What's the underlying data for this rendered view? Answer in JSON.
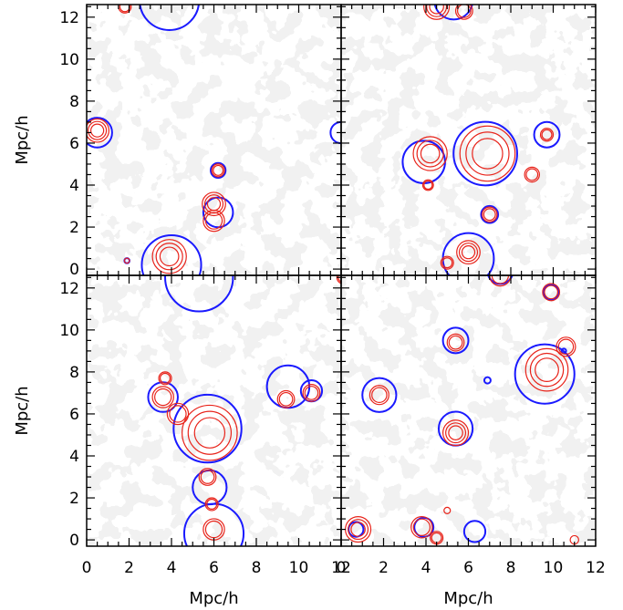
{
  "chart_data": {
    "type": "contour-panels",
    "layout": "2x2 shared axes",
    "xlabel": "Mpc/h",
    "ylabel": "Mpc/h",
    "xlim": [
      0,
      12
    ],
    "ylim": [
      -0.3,
      12.6
    ],
    "x_ticks": [
      0,
      2,
      4,
      6,
      8,
      10,
      12
    ],
    "y_ticks": [
      0,
      2,
      4,
      6,
      8,
      10,
      12
    ],
    "x_tick_labels": [
      "0",
      "2",
      "4",
      "6",
      "8",
      "10",
      "12"
    ],
    "y_tick_labels": [
      "0",
      "2",
      "4",
      "6",
      "8",
      "10",
      "12"
    ],
    "colors": {
      "blue_contour": "#1a1aff",
      "red_contour": "#e8231a",
      "background_field": "#dcdcdc"
    },
    "panels": [
      {
        "position": "top-left",
        "blue_regions": [
          {
            "x": 3.9,
            "y": 12.8,
            "r": 1.4
          },
          {
            "x": 0.5,
            "y": 6.5,
            "r": 0.7
          },
          {
            "x": 12.0,
            "y": 6.5,
            "r": 0.5
          },
          {
            "x": 6.2,
            "y": 4.7,
            "r": 0.35
          },
          {
            "x": 6.2,
            "y": 2.7,
            "r": 0.7
          },
          {
            "x": 4.0,
            "y": 0.2,
            "r": 1.4
          },
          {
            "x": 1.9,
            "y": 0.4,
            "r": 0.12
          }
        ],
        "red_regions": [
          {
            "x": 1.8,
            "y": 12.5,
            "r": 0.3
          },
          {
            "x": 0.5,
            "y": 6.6,
            "r": 0.55
          },
          {
            "x": 6.2,
            "y": 4.7,
            "r": 0.3
          },
          {
            "x": 6.0,
            "y": 3.1,
            "r": 0.55
          },
          {
            "x": 6.0,
            "y": 2.3,
            "r": 0.5
          },
          {
            "x": 3.9,
            "y": 0.6,
            "r": 0.8
          },
          {
            "x": 1.9,
            "y": 0.4,
            "r": 0.12
          }
        ]
      },
      {
        "position": "top-right",
        "blue_regions": [
          {
            "x": 5.3,
            "y": 12.8,
            "r": 0.9
          },
          {
            "x": 3.9,
            "y": 5.1,
            "r": 1.0
          },
          {
            "x": 6.8,
            "y": 5.5,
            "r": 1.5
          },
          {
            "x": 9.7,
            "y": 6.4,
            "r": 0.6
          },
          {
            "x": 7.0,
            "y": 2.6,
            "r": 0.4
          },
          {
            "x": 6.0,
            "y": 0.5,
            "r": 1.2
          }
        ],
        "red_regions": [
          {
            "x": 4.5,
            "y": 12.5,
            "r": 0.6
          },
          {
            "x": 5.8,
            "y": 12.3,
            "r": 0.4
          },
          {
            "x": 4.2,
            "y": 5.5,
            "r": 0.8
          },
          {
            "x": 6.9,
            "y": 5.5,
            "r": 1.3
          },
          {
            "x": 9.7,
            "y": 6.4,
            "r": 0.3
          },
          {
            "x": 9.0,
            "y": 4.5,
            "r": 0.35
          },
          {
            "x": 4.1,
            "y": 4.0,
            "r": 0.25
          },
          {
            "x": 7.0,
            "y": 2.6,
            "r": 0.35
          },
          {
            "x": 6.0,
            "y": 0.8,
            "r": 0.55
          },
          {
            "x": 5.0,
            "y": 0.3,
            "r": 0.3
          }
        ]
      },
      {
        "position": "bottom-left",
        "blue_regions": [
          {
            "x": 5.3,
            "y": 12.5,
            "r": 1.6
          },
          {
            "x": 3.6,
            "y": 6.8,
            "r": 0.7
          },
          {
            "x": 5.7,
            "y": 5.3,
            "r": 1.6
          },
          {
            "x": 5.8,
            "y": 2.5,
            "r": 0.8
          },
          {
            "x": 6.0,
            "y": 0.3,
            "r": 1.4
          },
          {
            "x": 9.5,
            "y": 7.3,
            "r": 1.0
          },
          {
            "x": 10.6,
            "y": 7.1,
            "r": 0.5
          }
        ],
        "red_regions": [
          {
            "x": 12.1,
            "y": 12.5,
            "r": 0.3
          },
          {
            "x": 3.7,
            "y": 7.7,
            "r": 0.3
          },
          {
            "x": 3.6,
            "y": 6.8,
            "r": 0.5
          },
          {
            "x": 4.3,
            "y": 6.0,
            "r": 0.5
          },
          {
            "x": 5.8,
            "y": 5.1,
            "r": 1.3
          },
          {
            "x": 5.7,
            "y": 3.0,
            "r": 0.4
          },
          {
            "x": 5.9,
            "y": 1.7,
            "r": 0.3
          },
          {
            "x": 6.0,
            "y": 0.5,
            "r": 0.5
          },
          {
            "x": 9.4,
            "y": 6.7,
            "r": 0.4
          },
          {
            "x": 10.6,
            "y": 7.0,
            "r": 0.4
          }
        ]
      },
      {
        "position": "bottom-right",
        "blue_regions": [
          {
            "x": 7.5,
            "y": 12.8,
            "r": 0.6
          },
          {
            "x": 9.9,
            "y": 11.8,
            "r": 0.35
          },
          {
            "x": 5.4,
            "y": 9.5,
            "r": 0.6
          },
          {
            "x": 9.6,
            "y": 7.9,
            "r": 1.4
          },
          {
            "x": 6.9,
            "y": 7.6,
            "r": 0.15
          },
          {
            "x": 10.5,
            "y": 9.0,
            "r": 0.08
          },
          {
            "x": 1.8,
            "y": 6.9,
            "r": 0.8
          },
          {
            "x": 5.4,
            "y": 5.3,
            "r": 0.8
          },
          {
            "x": 0.7,
            "y": 0.5,
            "r": 0.35
          },
          {
            "x": 3.9,
            "y": 0.6,
            "r": 0.45
          },
          {
            "x": 6.3,
            "y": 0.4,
            "r": 0.5
          }
        ],
        "red_regions": [
          {
            "x": 7.5,
            "y": 12.6,
            "r": 0.5
          },
          {
            "x": 9.9,
            "y": 11.8,
            "r": 0.4
          },
          {
            "x": 5.4,
            "y": 9.4,
            "r": 0.4
          },
          {
            "x": 9.7,
            "y": 8.1,
            "r": 1.0
          },
          {
            "x": 10.6,
            "y": 9.2,
            "r": 0.45
          },
          {
            "x": 1.8,
            "y": 6.9,
            "r": 0.45
          },
          {
            "x": 5.4,
            "y": 5.1,
            "r": 0.6
          },
          {
            "x": 0.8,
            "y": 0.5,
            "r": 0.6
          },
          {
            "x": 3.8,
            "y": 0.6,
            "r": 0.5
          },
          {
            "x": 4.5,
            "y": 0.1,
            "r": 0.3
          },
          {
            "x": 5.0,
            "y": 1.4,
            "r": 0.15
          },
          {
            "x": 11.0,
            "y": 0.0,
            "r": 0.2
          }
        ]
      }
    ]
  }
}
